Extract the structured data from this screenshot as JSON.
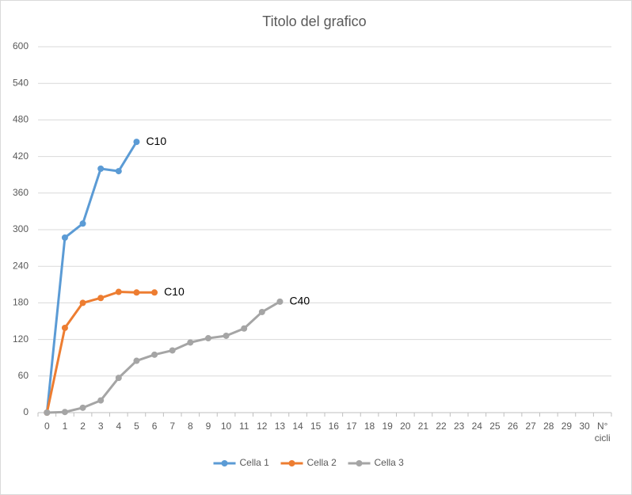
{
  "chart_data": {
    "type": "line",
    "title": "Titolo del grafico",
    "categories": [
      "0",
      "1",
      "2",
      "3",
      "4",
      "5",
      "6",
      "7",
      "8",
      "9",
      "10",
      "11",
      "12",
      "13",
      "14",
      "15",
      "16",
      "17",
      "18",
      "19",
      "20",
      "21",
      "22",
      "23",
      "24",
      "25",
      "26",
      "27",
      "28",
      "29",
      "30",
      "N° cicli"
    ],
    "ylim": [
      0,
      600
    ],
    "yticks": [
      0,
      60,
      120,
      180,
      240,
      300,
      360,
      420,
      480,
      540,
      600
    ],
    "grid": true,
    "legend": "bottom",
    "series": [
      {
        "name": "Cella 1",
        "color": "#5b9bd5",
        "end_label": "C10",
        "values": [
          0,
          287,
          310,
          400,
          396,
          444,
          null,
          null,
          null,
          null,
          null,
          null,
          null,
          null,
          null,
          null,
          null,
          null,
          null,
          null,
          null,
          null,
          null,
          null,
          null,
          null,
          null,
          null,
          null,
          null,
          null,
          null
        ]
      },
      {
        "name": "Cella 2",
        "color": "#ed7d31",
        "end_label": "C10",
        "values": [
          0,
          139,
          180,
          188,
          198,
          197,
          197,
          null,
          null,
          null,
          null,
          null,
          null,
          null,
          null,
          null,
          null,
          null,
          null,
          null,
          null,
          null,
          null,
          null,
          null,
          null,
          null,
          null,
          null,
          null,
          null,
          null
        ]
      },
      {
        "name": "Cella 3",
        "color": "#a5a5a5",
        "end_label": "C40",
        "values": [
          0,
          1,
          8,
          20,
          57,
          85,
          95,
          102,
          115,
          122,
          126,
          138,
          165,
          182,
          null,
          null,
          null,
          null,
          null,
          null,
          null,
          null,
          null,
          null,
          null,
          null,
          null,
          null,
          null,
          null,
          null,
          null
        ]
      }
    ]
  }
}
